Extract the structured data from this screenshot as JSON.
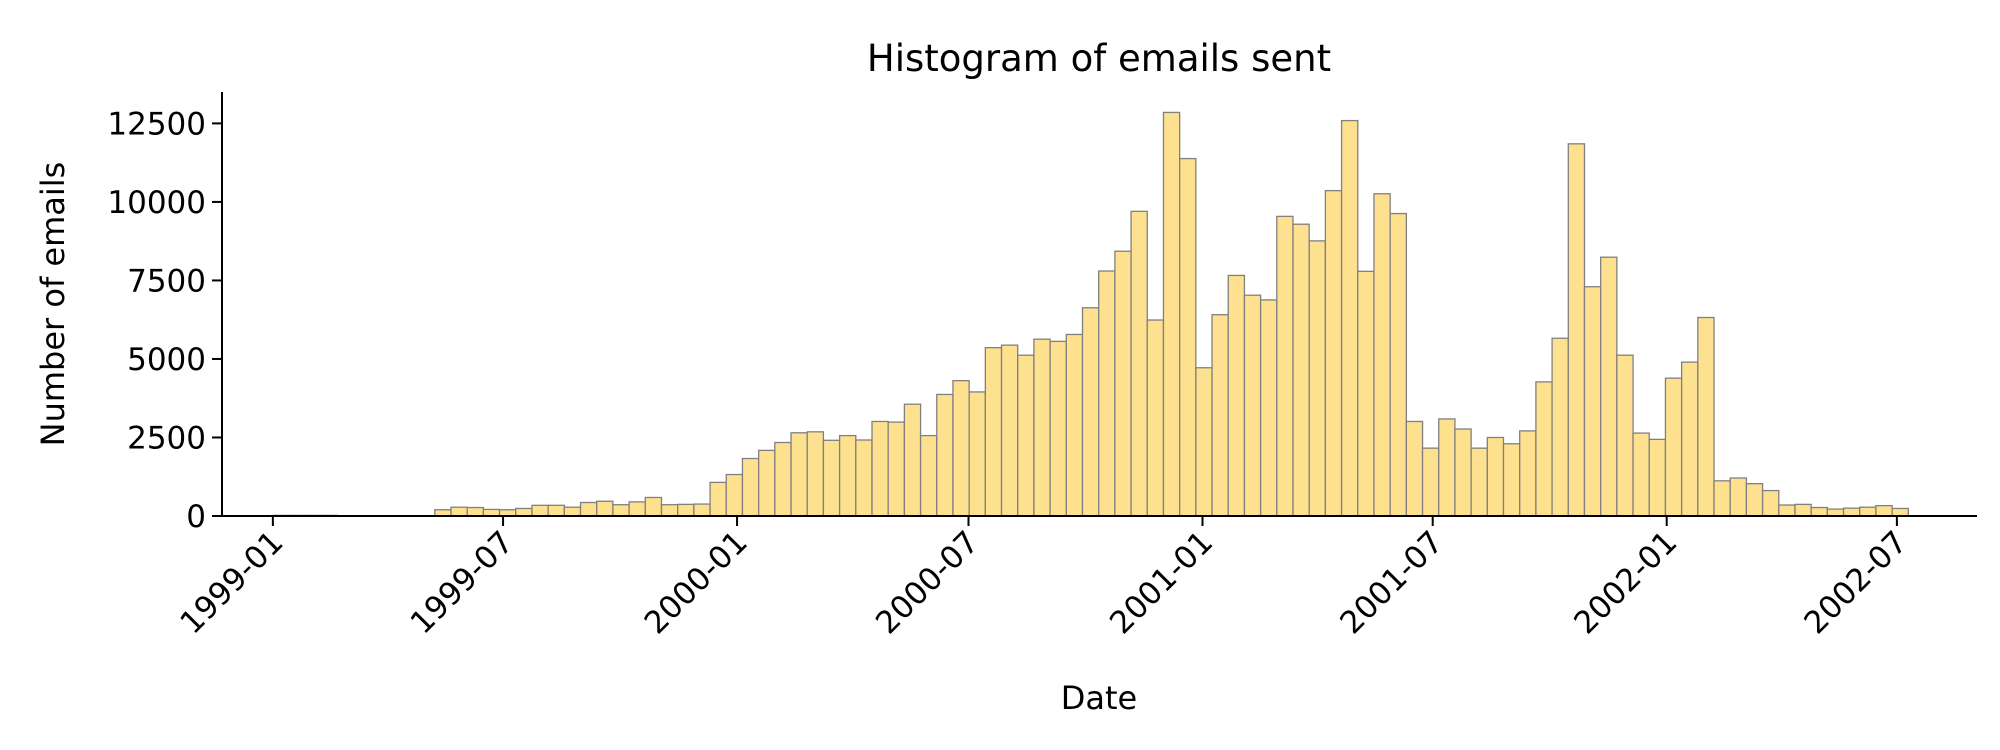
{
  "chart_data": {
    "type": "bar",
    "title": "Histogram of emails sent",
    "xlabel": "Date",
    "ylabel": "Number of emails",
    "bar_color": "#fde18f",
    "edge_color": "#808080",
    "grid": false,
    "xlim": [
      "1998-11-22",
      "2002-09-02"
    ],
    "ylim": [
      0,
      13500
    ],
    "x_ticks": [
      "1999-01",
      "1999-07",
      "2000-01",
      "2000-07",
      "2001-01",
      "2001-07",
      "2002-01",
      "2002-07"
    ],
    "y_ticks": [
      0,
      2500,
      5000,
      7500,
      10000,
      12500
    ],
    "bin_start": "1999-01-01",
    "bin_end": "2002-07-10",
    "values": [
      20,
      20,
      20,
      20,
      0,
      0,
      10,
      10,
      10,
      0,
      200,
      280,
      270,
      210,
      200,
      240,
      340,
      340,
      280,
      430,
      470,
      360,
      450,
      590,
      360,
      370,
      380,
      1070,
      1320,
      1830,
      2090,
      2340,
      2650,
      2680,
      2410,
      2560,
      2420,
      3010,
      2990,
      3560,
      2560,
      3870,
      4310,
      3950,
      5360,
      5440,
      5120,
      5630,
      5560,
      5780,
      6630,
      7800,
      8430,
      9700,
      6240,
      12850,
      11380,
      4720,
      6410,
      7660,
      7030,
      6880,
      9540,
      9290,
      8760,
      10360,
      12590,
      7790,
      10260,
      9630,
      3010,
      2160,
      3090,
      2770,
      2160,
      2500,
      2300,
      2710,
      4270,
      5660,
      11850,
      7300,
      8240,
      5120,
      2640,
      2440,
      4390,
      4900,
      6320,
      1120,
      1210,
      1030,
      810,
      350,
      370,
      270,
      220,
      250,
      280,
      330,
      240
    ]
  }
}
